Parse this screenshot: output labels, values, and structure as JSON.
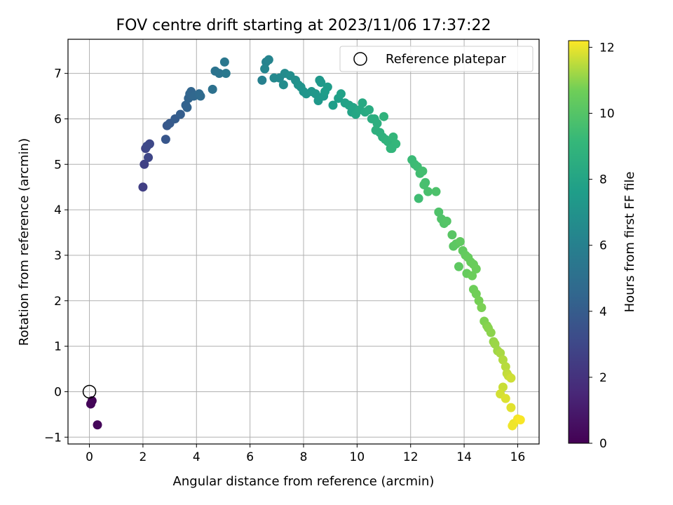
{
  "chart_data": {
    "type": "scatter",
    "title": "FOV centre drift starting at 2023/11/06 17:37:22",
    "xlabel": "Angular distance from reference (arcmin)",
    "ylabel": "Rotation from reference (arcmin)",
    "xlim": [
      -0.8,
      16.8
    ],
    "ylim": [
      -1.15,
      7.75
    ],
    "xticks": [
      0,
      2,
      4,
      6,
      8,
      10,
      12,
      14,
      16
    ],
    "yticks": [
      -1,
      0,
      1,
      2,
      3,
      4,
      5,
      6,
      7
    ],
    "grid": true,
    "legend": {
      "placement": "top-right",
      "entries": [
        "Reference platepar"
      ]
    },
    "reference_point": {
      "x": 0,
      "y": 0,
      "label": "Reference platepar"
    },
    "colorbar": {
      "label": "Hours from first FF file",
      "colormap": "viridis",
      "range": [
        0,
        12.2
      ],
      "ticks": [
        0,
        2,
        4,
        6,
        8,
        10,
        12
      ]
    },
    "series": [
      {
        "x": [
          0.1,
          0.05,
          0.3,
          2.0,
          2.05,
          2.1,
          2.2,
          2.25,
          2.15,
          2.85,
          2.9,
          3.0,
          3.2,
          3.4,
          3.6,
          3.7,
          3.75,
          3.8,
          3.9,
          4.1,
          4.15,
          3.65,
          4.6,
          4.7,
          4.85,
          5.05,
          5.1,
          6.45,
          6.6,
          6.7,
          6.55,
          6.9,
          7.1,
          7.3,
          7.25,
          7.5,
          7.7,
          7.8,
          7.9,
          8.0,
          8.1,
          8.3,
          8.45,
          8.55,
          8.65,
          8.75,
          8.9,
          8.8,
          8.6,
          9.1,
          9.3,
          9.4,
          9.55,
          9.7,
          9.8,
          9.85,
          9.95,
          10.1,
          10.2,
          10.3,
          10.45,
          10.55,
          10.65,
          10.75,
          10.85,
          10.95,
          11.05,
          11.15,
          11.25,
          11.35,
          11.45,
          10.7,
          11.0,
          11.3,
          12.05,
          12.15,
          12.25,
          12.35,
          12.45,
          12.55,
          12.65,
          12.3,
          12.5,
          12.95,
          13.05,
          13.15,
          13.25,
          13.35,
          13.55,
          13.6,
          13.7,
          13.85,
          13.95,
          14.05,
          14.15,
          14.25,
          14.35,
          14.45,
          13.8,
          14.1,
          14.3,
          14.35,
          14.45,
          14.55,
          14.65,
          14.75,
          14.85,
          14.9,
          15.0,
          15.1,
          15.15,
          15.25,
          15.35,
          15.45,
          15.55,
          15.6,
          15.65,
          15.75,
          15.45,
          15.35,
          15.55,
          15.75,
          15.85,
          15.8,
          16.0,
          16.1
        ],
        "y": [
          -0.2,
          -0.27,
          -0.73,
          4.5,
          5.0,
          5.35,
          5.15,
          5.45,
          5.4,
          5.55,
          5.85,
          5.9,
          6.0,
          6.1,
          6.3,
          6.45,
          6.55,
          6.6,
          6.5,
          6.55,
          6.5,
          6.25,
          6.65,
          7.05,
          7.0,
          7.25,
          7.0,
          6.85,
          7.25,
          7.3,
          7.1,
          6.9,
          6.9,
          7.0,
          6.75,
          6.95,
          6.85,
          6.75,
          6.7,
          6.6,
          6.55,
          6.6,
          6.55,
          6.4,
          6.8,
          6.5,
          6.7,
          6.6,
          6.85,
          6.3,
          6.45,
          6.55,
          6.35,
          6.3,
          6.15,
          6.25,
          6.1,
          6.2,
          6.35,
          6.15,
          6.2,
          6.0,
          6.0,
          5.9,
          5.7,
          5.6,
          5.55,
          5.5,
          5.35,
          5.6,
          5.45,
          5.75,
          6.05,
          5.35,
          5.1,
          5.0,
          4.95,
          4.8,
          4.85,
          4.6,
          4.4,
          4.25,
          4.55,
          4.4,
          3.95,
          3.8,
          3.7,
          3.75,
          3.45,
          3.2,
          3.25,
          3.3,
          3.1,
          3.0,
          2.95,
          2.85,
          2.8,
          2.7,
          2.75,
          2.6,
          2.55,
          2.25,
          2.15,
          2.0,
          1.85,
          1.55,
          1.45,
          1.4,
          1.3,
          1.1,
          1.05,
          0.9,
          0.85,
          0.7,
          0.55,
          0.4,
          0.35,
          0.3,
          0.1,
          -0.05,
          -0.15,
          -0.35,
          -0.7,
          -0.75,
          -0.6,
          -0.62
        ],
        "hours": [
          0.1,
          0.15,
          0.25,
          2.6,
          2.7,
          2.8,
          2.9,
          3.0,
          3.05,
          3.7,
          3.8,
          3.9,
          4.0,
          4.1,
          4.3,
          4.4,
          4.45,
          4.5,
          4.6,
          4.7,
          4.75,
          4.35,
          5.1,
          5.2,
          5.3,
          5.45,
          5.5,
          6.0,
          6.1,
          6.2,
          6.25,
          6.4,
          6.5,
          6.6,
          6.65,
          6.75,
          6.85,
          6.95,
          7.05,
          7.1,
          7.15,
          7.2,
          7.25,
          7.3,
          7.35,
          7.4,
          7.5,
          7.55,
          7.3,
          7.6,
          7.7,
          7.8,
          7.85,
          7.9,
          7.95,
          8.0,
          8.1,
          8.2,
          8.25,
          8.3,
          8.4,
          8.5,
          8.55,
          8.6,
          8.7,
          8.75,
          8.8,
          8.9,
          9.0,
          9.05,
          9.1,
          8.65,
          8.85,
          9.0,
          9.3,
          9.35,
          9.4,
          9.5,
          9.55,
          9.6,
          9.7,
          9.45,
          9.65,
          9.8,
          9.85,
          9.9,
          9.95,
          10.0,
          10.1,
          10.15,
          10.2,
          10.3,
          10.35,
          10.4,
          10.45,
          10.5,
          10.55,
          10.6,
          10.25,
          10.45,
          10.6,
          10.65,
          10.7,
          10.75,
          10.8,
          10.85,
          10.9,
          10.95,
          11.0,
          11.1,
          11.15,
          11.2,
          11.3,
          11.4,
          11.45,
          11.55,
          11.6,
          11.7,
          11.65,
          11.75,
          11.85,
          11.9,
          12.0,
          12.05,
          12.1,
          12.15
        ]
      }
    ]
  }
}
